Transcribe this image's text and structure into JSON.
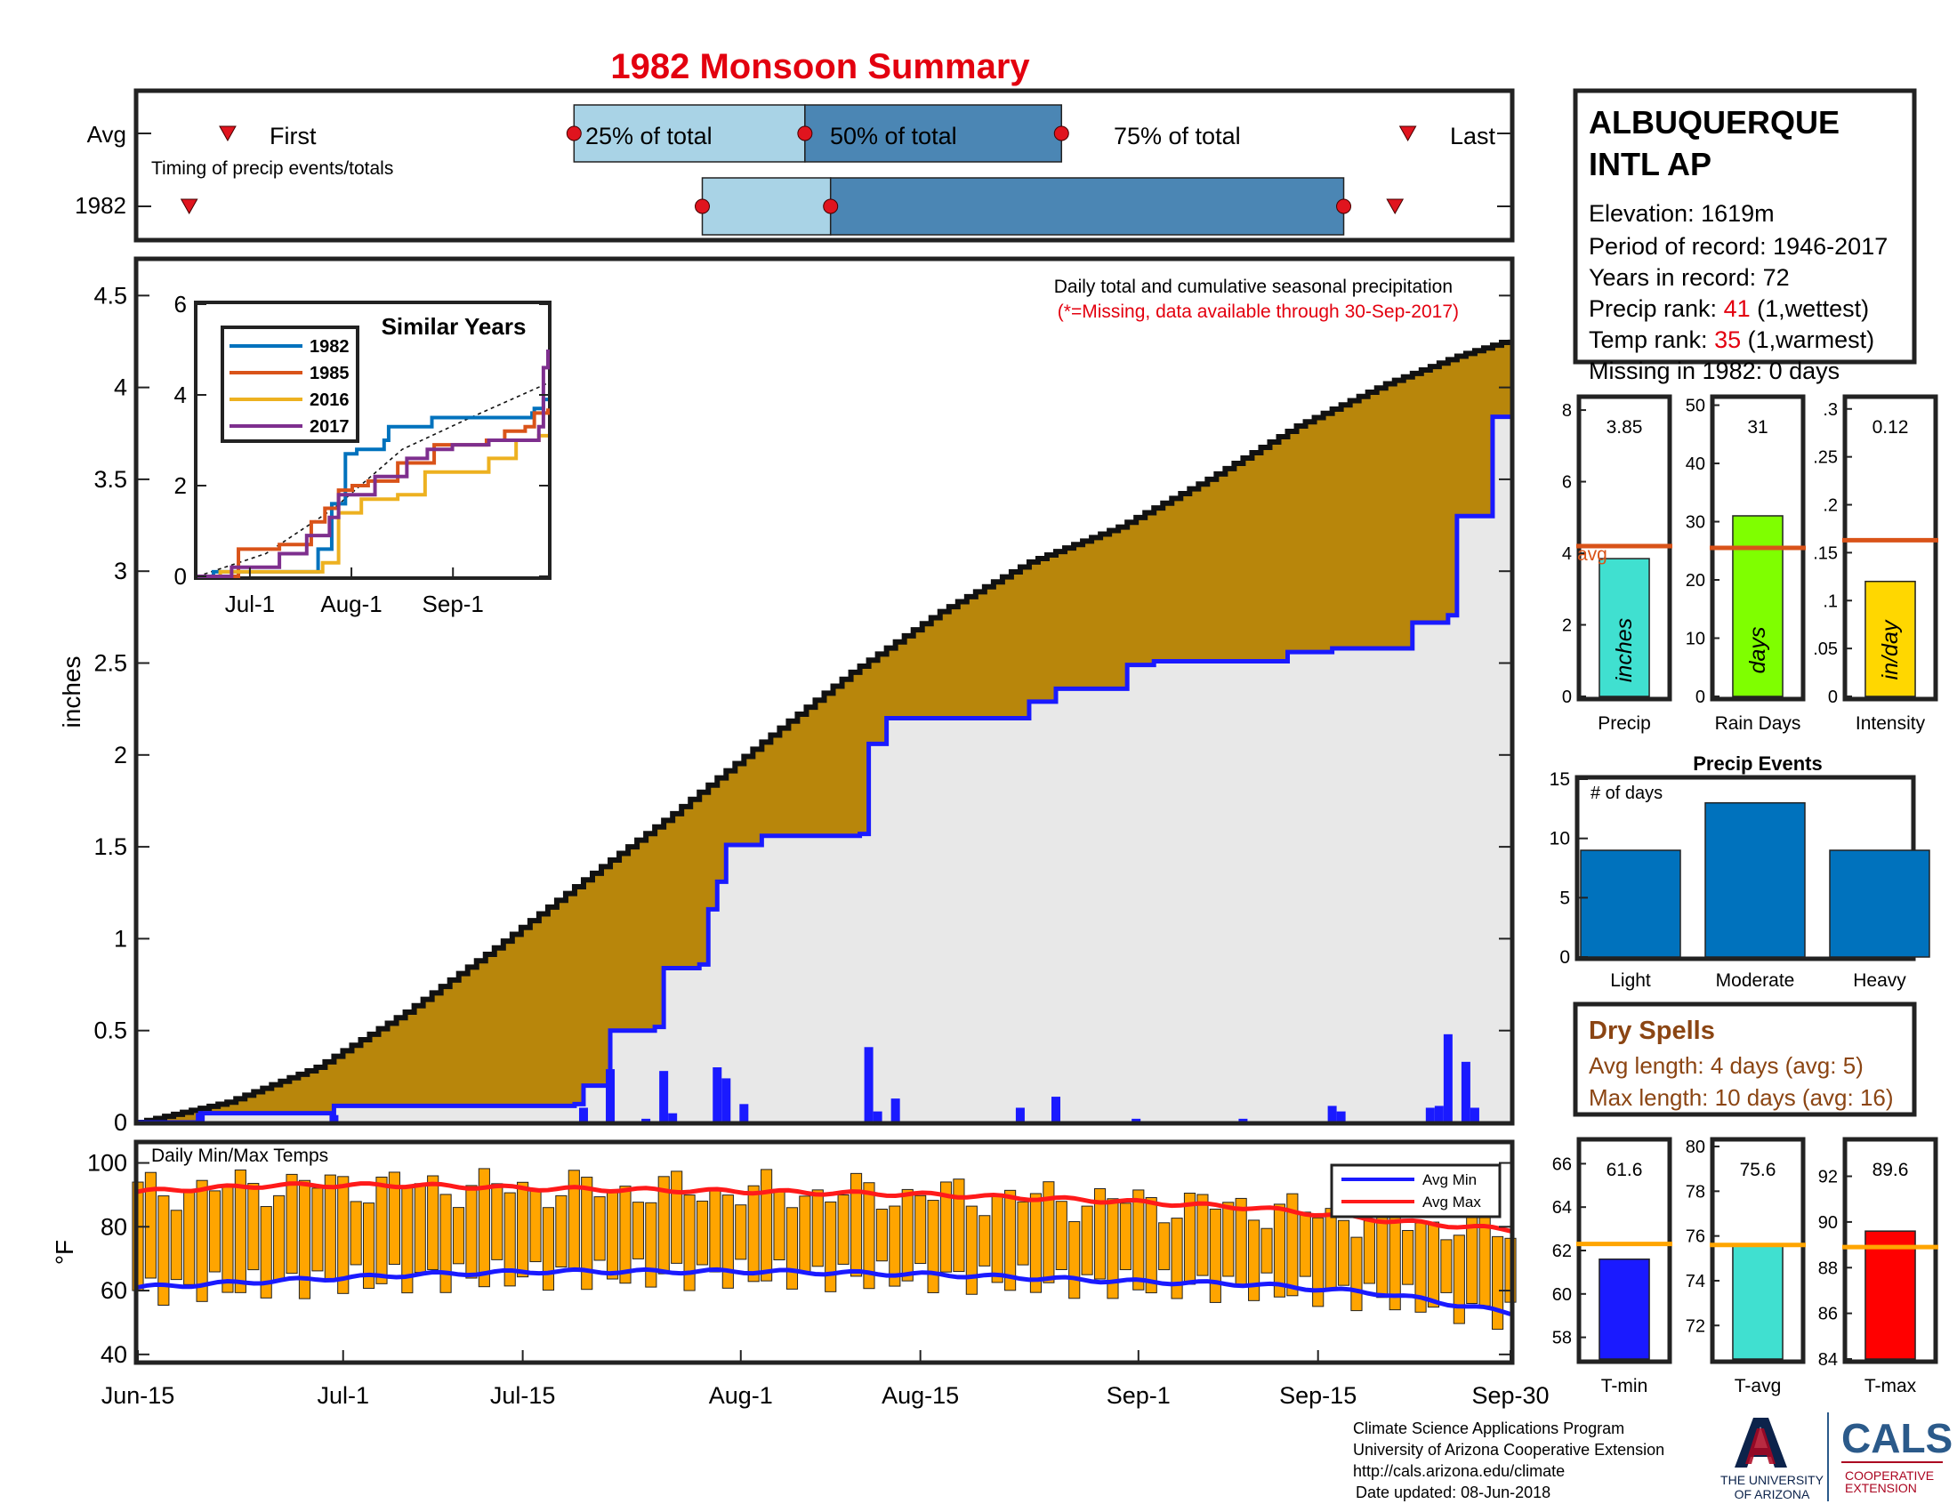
{
  "title": "1982 Monsoon Summary",
  "colors": {
    "title": "#e3000f",
    "accent_red": "#e0141e",
    "brown": "#b8860b",
    "dry_spells": "#8b4513",
    "avg_line": "#d95319",
    "orange_temp": "#ffa500",
    "blue_bar": "#1a1aff",
    "cum_fill_light": "#e8e8e8",
    "precip_events": "#0072bd",
    "box_light": "#a9d3e6",
    "box_dark": "#4b86b4",
    "ua_navy": "#0c234b",
    "ua_red": "#ab0520",
    "cals_blue": "#2b5a8a"
  },
  "station": {
    "name_line1": "ALBUQUERQUE",
    "name_line2": "INTL AP",
    "elevation": "Elevation: 1619m",
    "period": "Period of record: 1946-2017",
    "years": "Years in record: 72",
    "precip_rank_label": "Precip rank: ",
    "precip_rank_value": "41",
    "precip_rank_suffix": " (1,wettest)",
    "temp_rank_label": "Temp rank: ",
    "temp_rank_value": "35",
    "temp_rank_suffix": " (1,warmest)",
    "missing": "Missing in 1982: 0 days"
  },
  "timing": {
    "row_labels": [
      "Avg",
      "1982"
    ],
    "note": "Timing of precip events/totals",
    "first_label": "First",
    "last_label": "Last",
    "q25_label": "25% of total",
    "q50_label": "50% of total",
    "q75_label": "75% of total"
  },
  "main": {
    "annotation": "Daily total and cumulative seasonal precipitation",
    "missing_note": "(*=Missing, data available through 30-Sep-2017)",
    "ylabel": "inches"
  },
  "temps": {
    "label": "Daily Min/Max Temps",
    "ylabel": "°F",
    "legend_min": "Avg Min",
    "legend_max": "Avg Max"
  },
  "small_bars": {
    "precip_value_label": "3.85",
    "precip_unit": "inches",
    "precip_xlabel": "Precip",
    "avg_label": "avg",
    "raindays_value_label": "31",
    "raindays_unit": "days",
    "raindays_xlabel": "Rain Days",
    "intensity_value_label": "0.12",
    "intensity_unit": "in/day",
    "intensity_xlabel": "Intensity"
  },
  "events": {
    "title": "Precip Events",
    "ylabel": "# of days"
  },
  "dry_spells": {
    "title": "Dry Spells",
    "avg": "Avg length: 4 days (avg: 5)",
    "max": "Max length: 10 days (avg: 16)"
  },
  "temp_bars": {
    "tmin_label": "61.6",
    "tmin_xlabel": "T-min",
    "tavg_label": "75.6",
    "tavg_xlabel": "T-avg",
    "tmax_label": "89.6",
    "tmax_xlabel": "T-max"
  },
  "footer": {
    "line1": "Climate Science Applications Program",
    "line2": "University of Arizona Cooperative Extension",
    "line3": "http://cals.arizona.edu/climate",
    "line4": "Date updated: 08-Jun-2018"
  },
  "logos": {
    "ua_line1": "THE UNIVERSITY",
    "ua_line2": "OF ARIZONA",
    "cals": "CALS",
    "cals_line1": "COOPERATIVE",
    "cals_line2": "EXTENSION"
  },
  "chart_data": [
    {
      "id": "timing",
      "type": "box",
      "title": "Timing of precip events/totals",
      "rows": [
        {
          "name": "Avg",
          "first": "Jun-22",
          "q25": "Jul-19",
          "q50": "Aug-6",
          "q75": "Aug-26",
          "last": "Sep-22"
        },
        {
          "name": "1982",
          "first": "Jun-19",
          "q25": "Jul-29",
          "q50": "Aug-8",
          "q75": "Sep-17",
          "last": "Sep-21"
        }
      ]
    },
    {
      "id": "seasonal_precip",
      "type": "area",
      "xlabel": "",
      "ylabel": "inches",
      "x_range": [
        "Jun-15",
        "Sep-30"
      ],
      "ylim": [
        0,
        4.7
      ],
      "yticks": [
        0,
        0.5,
        1,
        1.5,
        2,
        2.5,
        3,
        3.5,
        4,
        4.5
      ],
      "xticks": [
        "Jun-15",
        "Jul-1",
        "Jul-15",
        "Aug-1",
        "Aug-15",
        "Sep-1",
        "Sep-15",
        "Sep-30"
      ],
      "avg_cumulative": [
        [
          0,
          0
        ],
        [
          10,
          0.11
        ],
        [
          20,
          0.3
        ],
        [
          30,
          0.6
        ],
        [
          40,
          0.95
        ],
        [
          50,
          1.32
        ],
        [
          60,
          1.68
        ],
        [
          70,
          2.07
        ],
        [
          80,
          2.45
        ],
        [
          90,
          2.78
        ],
        [
          100,
          3.05
        ],
        [
          110,
          3.24
        ],
        [
          120,
          3.5
        ],
        [
          130,
          3.79
        ],
        [
          140,
          4.02
        ],
        [
          148,
          4.17
        ],
        [
          154,
          4.26
        ]
      ],
      "cumulative_1982": [
        [
          0,
          0
        ],
        [
          7,
          0.05
        ],
        [
          21,
          0.05
        ],
        [
          22,
          0.09
        ],
        [
          49,
          0.1
        ],
        [
          50,
          0.2
        ],
        [
          53,
          0.5
        ],
        [
          58,
          0.52
        ],
        [
          59,
          0.84
        ],
        [
          63,
          0.86
        ],
        [
          64,
          1.16
        ],
        [
          65,
          1.31
        ],
        [
          66,
          1.51
        ],
        [
          70,
          1.56
        ],
        [
          81,
          1.57
        ],
        [
          82,
          2.06
        ],
        [
          84,
          2.2
        ],
        [
          100,
          2.29
        ],
        [
          103,
          2.36
        ],
        [
          111,
          2.49
        ],
        [
          114,
          2.51
        ],
        [
          128,
          2.51
        ],
        [
          129,
          2.56
        ],
        [
          134,
          2.58
        ],
        [
          143,
          2.72
        ],
        [
          147,
          2.76
        ],
        [
          148,
          3.3
        ],
        [
          152,
          3.84
        ],
        [
          154,
          3.85
        ]
      ],
      "daily_1982": [
        [
          7,
          0.05
        ],
        [
          22,
          0.04
        ],
        [
          50,
          0.08
        ],
        [
          53,
          0.29
        ],
        [
          57,
          0.02
        ],
        [
          59,
          0.28
        ],
        [
          60,
          0.05
        ],
        [
          65,
          0.3
        ],
        [
          66,
          0.24
        ],
        [
          68,
          0.1
        ],
        [
          82,
          0.41
        ],
        [
          83,
          0.06
        ],
        [
          85,
          0.13
        ],
        [
          99,
          0.08
        ],
        [
          103,
          0.14
        ],
        [
          112,
          0.02
        ],
        [
          124,
          0.02
        ],
        [
          134,
          0.09
        ],
        [
          135,
          0.06
        ],
        [
          145,
          0.08
        ],
        [
          146,
          0.09
        ],
        [
          147,
          0.48
        ],
        [
          149,
          0.33
        ],
        [
          150,
          0.08
        ]
      ]
    },
    {
      "id": "similar_years",
      "type": "line",
      "title": "Similar Years",
      "ylim": [
        0,
        6
      ],
      "xticks": [
        "Jul-1",
        "Aug-1",
        "Sep-1"
      ],
      "series": [
        {
          "name": "1982",
          "color": "#0072bd",
          "values": [
            [
              0,
              0
            ],
            [
              7,
              0.1
            ],
            [
              22,
              0.1
            ],
            [
              53,
              0.6
            ],
            [
              59,
              1.6
            ],
            [
              65,
              2.7
            ],
            [
              70,
              2.8
            ],
            [
              82,
              3.0
            ],
            [
              84,
              3.3
            ],
            [
              103,
              3.5
            ],
            [
              129,
              3.5
            ],
            [
              147,
              3.6
            ],
            [
              148,
              3.7
            ],
            [
              152,
              3.9
            ],
            [
              154,
              3.9
            ]
          ]
        },
        {
          "name": "1985",
          "color": "#d95319",
          "values": [
            [
              0,
              0
            ],
            [
              18,
              0.6
            ],
            [
              36,
              0.7
            ],
            [
              50,
              1.2
            ],
            [
              56,
              1.5
            ],
            [
              62,
              1.9
            ],
            [
              68,
              2.0
            ],
            [
              75,
              2.1
            ],
            [
              88,
              2.5
            ],
            [
              104,
              2.9
            ],
            [
              127,
              3.0
            ],
            [
              135,
              3.2
            ],
            [
              144,
              3.3
            ],
            [
              148,
              3.6
            ],
            [
              154,
              3.7
            ]
          ]
        },
        {
          "name": "2016",
          "color": "#edb120",
          "values": [
            [
              0,
              0
            ],
            [
              10,
              0.1
            ],
            [
              25,
              0.1
            ],
            [
              55,
              0.3
            ],
            [
              62,
              1.4
            ],
            [
              72,
              1.7
            ],
            [
              88,
              1.8
            ],
            [
              100,
              2.3
            ],
            [
              128,
              2.6
            ],
            [
              140,
              3.0
            ],
            [
              150,
              3.1
            ],
            [
              154,
              3.1
            ]
          ]
        },
        {
          "name": "2017",
          "color": "#7e2f8e",
          "values": [
            [
              0,
              0
            ],
            [
              15,
              0.2
            ],
            [
              36,
              0.5
            ],
            [
              48,
              0.9
            ],
            [
              58,
              1.3
            ],
            [
              62,
              1.8
            ],
            [
              78,
              2.2
            ],
            [
              92,
              2.6
            ],
            [
              101,
              2.8
            ],
            [
              112,
              2.9
            ],
            [
              128,
              3.0
            ],
            [
              146,
              3.0
            ],
            [
              150,
              3.3
            ],
            [
              152,
              4.6
            ],
            [
              154,
              5.0
            ]
          ]
        }
      ],
      "avg_dashed": [
        [
          0,
          0
        ],
        [
          30,
          0.5
        ],
        [
          60,
          1.5
        ],
        [
          90,
          2.8
        ],
        [
          120,
          3.5
        ],
        [
          154,
          4.26
        ]
      ]
    },
    {
      "id": "daily_temps",
      "type": "bar",
      "title": "Daily Min/Max Temps",
      "ylabel": "°F",
      "ylim": [
        38,
        106
      ],
      "yticks": [
        40,
        60,
        80,
        100
      ],
      "series": [
        {
          "name": "Avg Min",
          "color": "#1a1aff",
          "values": [
            [
              0,
              61
            ],
            [
              15,
              63
            ],
            [
              31,
              65
            ],
            [
              45,
              66
            ],
            [
              70,
              66
            ],
            [
              90,
              65
            ],
            [
              110,
              63
            ],
            [
              125,
              62
            ],
            [
              140,
              59
            ],
            [
              154,
              53
            ]
          ]
        },
        {
          "name": "Avg Max",
          "color": "#ff1a1a",
          "values": [
            [
              0,
              91
            ],
            [
              15,
              93
            ],
            [
              31,
              93
            ],
            [
              45,
              92
            ],
            [
              70,
              91
            ],
            [
              90,
              90
            ],
            [
              110,
              88
            ],
            [
              125,
              86
            ],
            [
              140,
              82
            ],
            [
              154,
              79
            ]
          ]
        }
      ],
      "daily_min_range": [
        50,
        72
      ],
      "daily_max_range": [
        78,
        100
      ]
    },
    {
      "id": "precip_total",
      "type": "bar",
      "categories": [
        "Precip"
      ],
      "values": [
        3.85
      ],
      "avg": 4.2,
      "ylim": [
        0,
        8.3
      ],
      "yticks": [
        0,
        2,
        4,
        6,
        8
      ],
      "color": "#40e0d0"
    },
    {
      "id": "rain_days",
      "type": "bar",
      "categories": [
        "Rain Days"
      ],
      "values": [
        31
      ],
      "avg": 25.5,
      "ylim": [
        0,
        51
      ],
      "yticks": [
        0,
        10,
        20,
        30,
        40,
        50
      ],
      "color": "#7fff00"
    },
    {
      "id": "intensity",
      "type": "bar",
      "categories": [
        "Intensity"
      ],
      "values": [
        0.12
      ],
      "avg": 0.163,
      "ylim": [
        0,
        0.31
      ],
      "yticks": [
        0,
        0.05,
        0.1,
        0.15,
        0.2,
        0.25,
        0.3
      ],
      "color": "#ffd700"
    },
    {
      "id": "precip_events",
      "type": "bar",
      "title": "Precip Events",
      "ylabel": "# of days",
      "categories": [
        "Light",
        "Moderate",
        "Heavy"
      ],
      "values": [
        9,
        13,
        9
      ],
      "ylim": [
        0,
        15
      ],
      "yticks": [
        0,
        5,
        10,
        15
      ]
    },
    {
      "id": "tmin",
      "type": "bar",
      "categories": [
        "T-min"
      ],
      "values": [
        61.6
      ],
      "avg": 62.3,
      "ylim": [
        57,
        67
      ],
      "yticks": [
        58,
        60,
        62,
        64,
        66
      ],
      "color": "#1a1aff"
    },
    {
      "id": "tavg",
      "type": "bar",
      "categories": [
        "T-avg"
      ],
      "values": [
        75.6
      ],
      "avg": 75.6,
      "ylim": [
        70.5,
        80.2
      ],
      "yticks": [
        72,
        74,
        76,
        78,
        80
      ],
      "color": "#40e0d0"
    },
    {
      "id": "tmax",
      "type": "bar",
      "categories": [
        "T-max"
      ],
      "values": [
        89.6
      ],
      "avg": 88.9,
      "ylim": [
        84,
        93.5
      ],
      "yticks": [
        84,
        86,
        88,
        90,
        92
      ],
      "color": "#ff0000"
    }
  ]
}
